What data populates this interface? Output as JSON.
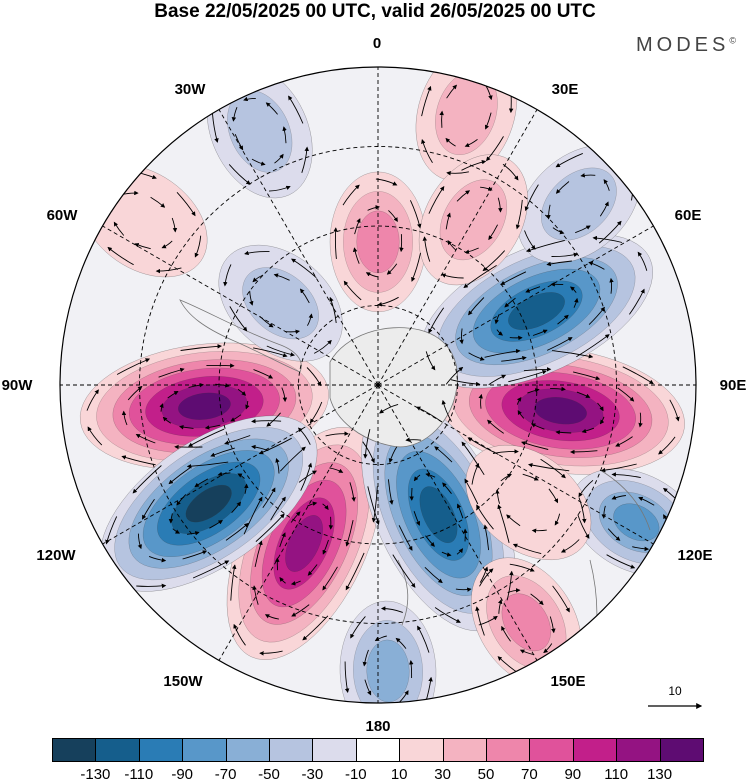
{
  "header": {
    "title": "Base 22/05/2025 00 UTC, valid 26/05/2025 00 UTC",
    "brand": "MODES",
    "brand_mark": "©"
  },
  "map": {
    "projection": "south-polar-stereographic",
    "longitude_labels": [
      {
        "name": "lon-0",
        "text": "0"
      },
      {
        "name": "lon-30e",
        "text": "30E"
      },
      {
        "name": "lon-60e",
        "text": "60E"
      },
      {
        "name": "lon-90e",
        "text": "90E"
      },
      {
        "name": "lon-120e",
        "text": "120E"
      },
      {
        "name": "lon-150e",
        "text": "150E"
      },
      {
        "name": "lon-180",
        "text": "180"
      },
      {
        "name": "lon-150w",
        "text": "150W"
      },
      {
        "name": "lon-120w",
        "text": "120W"
      },
      {
        "name": "lon-90w",
        "text": "90W"
      },
      {
        "name": "lon-60w",
        "text": "60W"
      },
      {
        "name": "lon-30w",
        "text": "30W"
      }
    ],
    "anomaly_centers": [
      {
        "sign": "positive",
        "value": 140,
        "bearing_deg": 263,
        "r_frac": 0.55
      },
      {
        "sign": "positive",
        "value": 140,
        "bearing_deg": 98,
        "r_frac": 0.58
      },
      {
        "sign": "positive",
        "value": 125,
        "bearing_deg": 205,
        "r_frac": 0.55
      },
      {
        "sign": "negative",
        "value": -140,
        "bearing_deg": 235,
        "r_frac": 0.65
      },
      {
        "sign": "negative",
        "value": -120,
        "bearing_deg": 65,
        "r_frac": 0.55
      },
      {
        "sign": "negative",
        "value": -125,
        "bearing_deg": 155,
        "r_frac": 0.45
      },
      {
        "sign": "negative",
        "value": -90,
        "bearing_deg": 118,
        "r_frac": 0.92
      },
      {
        "sign": "positive",
        "value": 70,
        "bearing_deg": 0,
        "r_frac": 0.45
      },
      {
        "sign": "positive",
        "value": 50,
        "bearing_deg": 18,
        "r_frac": 0.9
      },
      {
        "sign": "negative",
        "value": -50,
        "bearing_deg": 335,
        "r_frac": 0.88
      },
      {
        "sign": "negative",
        "value": -50,
        "bearing_deg": 48,
        "r_frac": 0.85
      },
      {
        "sign": "positive",
        "value": 30,
        "bearing_deg": 305,
        "r_frac": 0.9
      },
      {
        "sign": "negative",
        "value": -40,
        "bearing_deg": 310,
        "r_frac": 0.4
      },
      {
        "sign": "positive",
        "value": 60,
        "bearing_deg": 148,
        "r_frac": 0.88
      },
      {
        "sign": "negative",
        "value": -70,
        "bearing_deg": 178,
        "r_frac": 0.9
      },
      {
        "sign": "positive",
        "value": 40,
        "bearing_deg": 30,
        "r_frac": 0.6
      },
      {
        "sign": "positive",
        "value": 20,
        "bearing_deg": 128,
        "r_frac": 0.6
      }
    ],
    "vector_reference": {
      "value": "10"
    }
  },
  "colorbar": {
    "colors": [
      "#16405c",
      "#155e8c",
      "#2a7cb5",
      "#5897c9",
      "#89afd6",
      "#b6c4e0",
      "#dcdcec",
      "#ffffff",
      "#f9d6d8",
      "#f4b3c1",
      "#ee86ab",
      "#e0529b",
      "#c21f8a",
      "#941382",
      "#5e0c72"
    ],
    "ticks": [
      "-130",
      "-110",
      "-90",
      "-70",
      "-50",
      "-30",
      "-10",
      "10",
      "30",
      "50",
      "70",
      "90",
      "110",
      "130"
    ]
  }
}
